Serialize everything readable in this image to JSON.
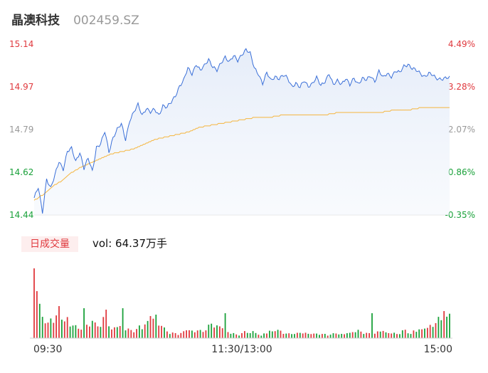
{
  "header": {
    "name": "晶澳科技",
    "code": "002459.SZ"
  },
  "volume": {
    "tag": "日成交量",
    "text": "vol: 64.37万手"
  },
  "colors": {
    "price": "#3a6fd8",
    "avg": "#f5b53d",
    "up": "#e0393e",
    "down": "#1aa13a",
    "neutral": "#999999"
  },
  "chart_data": {
    "type": "line",
    "y_left_ticks": [
      "15.14",
      "14.97",
      "14.79",
      "14.62",
      "14.44"
    ],
    "y_right_ticks": [
      "4.49%",
      "3.28%",
      "2.07%",
      "0.86%",
      "-0.35%"
    ],
    "x_ticks": [
      "09:30",
      "11:30/13:00",
      "15:00"
    ],
    "ylim": [
      14.44,
      15.14
    ],
    "x_count": 241,
    "price_keys": [
      [
        0,
        14.51
      ],
      [
        3,
        14.55
      ],
      [
        6,
        14.45
      ],
      [
        9,
        14.59
      ],
      [
        12,
        14.55
      ],
      [
        15,
        14.6
      ],
      [
        18,
        14.66
      ],
      [
        21,
        14.63
      ],
      [
        24,
        14.7
      ],
      [
        27,
        14.71
      ],
      [
        30,
        14.66
      ],
      [
        33,
        14.7
      ],
      [
        36,
        14.63
      ],
      [
        39,
        14.67
      ],
      [
        42,
        14.62
      ],
      [
        45,
        14.72
      ],
      [
        48,
        14.73
      ],
      [
        51,
        14.78
      ],
      [
        54,
        14.7
      ],
      [
        57,
        14.76
      ],
      [
        60,
        14.79
      ],
      [
        63,
        14.81
      ],
      [
        66,
        14.75
      ],
      [
        69,
        14.83
      ],
      [
        72,
        14.86
      ],
      [
        75,
        14.89
      ],
      [
        78,
        14.85
      ],
      [
        81,
        14.88
      ],
      [
        84,
        14.86
      ],
      [
        87,
        14.87
      ],
      [
        90,
        14.85
      ],
      [
        93,
        14.89
      ],
      [
        96,
        14.88
      ],
      [
        99,
        14.9
      ],
      [
        102,
        14.93
      ],
      [
        105,
        14.97
      ],
      [
        108,
        14.99
      ],
      [
        111,
        15.04
      ],
      [
        114,
        15.02
      ],
      [
        117,
        15.06
      ],
      [
        120,
        15.03
      ],
      [
        123,
        15.05
      ],
      [
        126,
        15.08
      ],
      [
        129,
        15.05
      ],
      [
        132,
        15.03
      ],
      [
        135,
        15.06
      ],
      [
        138,
        15.09
      ],
      [
        141,
        15.07
      ],
      [
        144,
        15.09
      ],
      [
        147,
        15.07
      ],
      [
        150,
        15.1
      ],
      [
        153,
        15.12
      ],
      [
        156,
        15.1
      ],
      [
        159,
        15.04
      ],
      [
        162,
        15.02
      ],
      [
        165,
        14.98
      ],
      [
        168,
        15.02
      ],
      [
        171,
        14.99
      ],
      [
        174,
        15.01
      ],
      [
        177,
        15.0
      ],
      [
        180,
        15.01
      ],
      [
        183,
        15.0
      ],
      [
        186,
        14.97
      ],
      [
        189,
        14.98
      ],
      [
        192,
        14.96
      ],
      [
        195,
        14.99
      ],
      [
        198,
        14.97
      ],
      [
        201,
        14.98
      ],
      [
        204,
        15.0
      ],
      [
        207,
        14.97
      ],
      [
        210,
        14.99
      ],
      [
        213,
        15.02
      ],
      [
        216,
        14.97
      ],
      [
        219,
        14.99
      ],
      [
        222,
        14.98
      ],
      [
        225,
        15.0
      ],
      [
        228,
        14.97
      ],
      [
        231,
        15.0
      ],
      [
        234,
        14.98
      ],
      [
        237,
        15.0
      ],
      [
        240,
        14.99
      ],
      [
        243,
        15.01
      ],
      [
        246,
        14.99
      ],
      [
        249,
        15.03
      ],
      [
        252,
        15.0
      ],
      [
        255,
        15.02
      ],
      [
        258,
        15.01
      ],
      [
        261,
        15.03
      ],
      [
        264,
        15.02
      ],
      [
        267,
        15.05
      ],
      [
        270,
        15.06
      ],
      [
        273,
        15.04
      ],
      [
        276,
        15.03
      ],
      [
        279,
        15.02
      ],
      [
        282,
        15.01
      ],
      [
        285,
        15.02
      ],
      [
        288,
        15.01
      ],
      [
        290,
        15.0
      ],
      [
        294,
        15.0
      ],
      [
        298,
        15.0
      ],
      [
        300,
        15.0
      ]
    ],
    "avg_keys": [
      [
        0,
        14.5
      ],
      [
        3,
        14.51
      ],
      [
        8,
        14.53
      ],
      [
        14,
        14.56
      ],
      [
        20,
        14.58
      ],
      [
        26,
        14.61
      ],
      [
        32,
        14.63
      ],
      [
        40,
        14.65
      ],
      [
        48,
        14.67
      ],
      [
        56,
        14.69
      ],
      [
        64,
        14.7
      ],
      [
        72,
        14.71
      ],
      [
        80,
        14.73
      ],
      [
        88,
        14.75
      ],
      [
        96,
        14.76
      ],
      [
        104,
        14.77
      ],
      [
        112,
        14.78
      ],
      [
        120,
        14.8
      ],
      [
        130,
        14.81
      ],
      [
        140,
        14.82
      ],
      [
        150,
        14.83
      ],
      [
        160,
        14.84
      ],
      [
        170,
        14.84
      ],
      [
        180,
        14.85
      ],
      [
        190,
        14.85
      ],
      [
        200,
        14.85
      ],
      [
        210,
        14.85
      ],
      [
        220,
        14.86
      ],
      [
        230,
        14.86
      ],
      [
        240,
        14.86
      ],
      [
        250,
        14.86
      ],
      [
        260,
        14.87
      ],
      [
        270,
        14.87
      ],
      [
        280,
        14.88
      ],
      [
        290,
        14.88
      ],
      [
        300,
        14.88
      ]
    ],
    "volume_profile": [
      [
        0,
        95
      ],
      [
        2,
        60
      ],
      [
        4,
        50
      ],
      [
        6,
        35
      ],
      [
        8,
        30
      ],
      [
        10,
        22
      ],
      [
        14,
        35
      ],
      [
        16,
        38
      ],
      [
        20,
        28
      ],
      [
        24,
        30
      ],
      [
        26,
        18
      ],
      [
        30,
        22
      ],
      [
        32,
        18
      ],
      [
        36,
        22
      ],
      [
        40,
        28
      ],
      [
        44,
        22
      ],
      [
        48,
        26
      ],
      [
        50,
        32
      ],
      [
        54,
        22
      ],
      [
        58,
        20
      ],
      [
        62,
        18
      ],
      [
        66,
        15
      ],
      [
        70,
        12
      ],
      [
        74,
        16
      ],
      [
        78,
        22
      ],
      [
        82,
        28
      ],
      [
        84,
        34
      ],
      [
        88,
        25
      ],
      [
        92,
        18
      ],
      [
        96,
        12
      ],
      [
        100,
        8
      ],
      [
        104,
        6
      ],
      [
        108,
        10
      ],
      [
        112,
        12
      ],
      [
        116,
        10
      ],
      [
        120,
        12
      ],
      [
        124,
        16
      ],
      [
        128,
        22
      ],
      [
        132,
        18
      ],
      [
        136,
        16
      ],
      [
        140,
        10
      ],
      [
        144,
        8
      ],
      [
        148,
        6
      ],
      [
        152,
        10
      ],
      [
        156,
        12
      ],
      [
        160,
        8
      ],
      [
        164,
        6
      ],
      [
        168,
        10
      ],
      [
        172,
        14
      ],
      [
        176,
        12
      ],
      [
        180,
        9
      ],
      [
        184,
        7
      ],
      [
        188,
        9
      ],
      [
        192,
        8
      ],
      [
        196,
        8
      ],
      [
        200,
        6
      ],
      [
        204,
        7
      ],
      [
        208,
        6
      ],
      [
        212,
        6
      ],
      [
        216,
        7
      ],
      [
        220,
        6
      ],
      [
        224,
        6
      ],
      [
        228,
        8
      ],
      [
        232,
        14
      ],
      [
        236,
        10
      ],
      [
        240,
        8
      ],
      [
        244,
        6
      ],
      [
        248,
        10
      ],
      [
        252,
        12
      ],
      [
        256,
        10
      ],
      [
        260,
        8
      ],
      [
        264,
        10
      ],
      [
        268,
        12
      ],
      [
        272,
        10
      ],
      [
        276,
        14
      ],
      [
        280,
        18
      ],
      [
        284,
        16
      ],
      [
        288,
        22
      ],
      [
        292,
        30
      ],
      [
        296,
        28
      ],
      [
        298,
        34
      ],
      [
        300,
        36
      ]
    ],
    "volume_spikes": [
      [
        0,
        98
      ],
      [
        3,
        66
      ],
      [
        18,
        45
      ],
      [
        37,
        42
      ],
      [
        53,
        40
      ],
      [
        64,
        42
      ],
      [
        88,
        33
      ],
      [
        138,
        35
      ],
      [
        244,
        35
      ],
      [
        296,
        38
      ]
    ]
  }
}
